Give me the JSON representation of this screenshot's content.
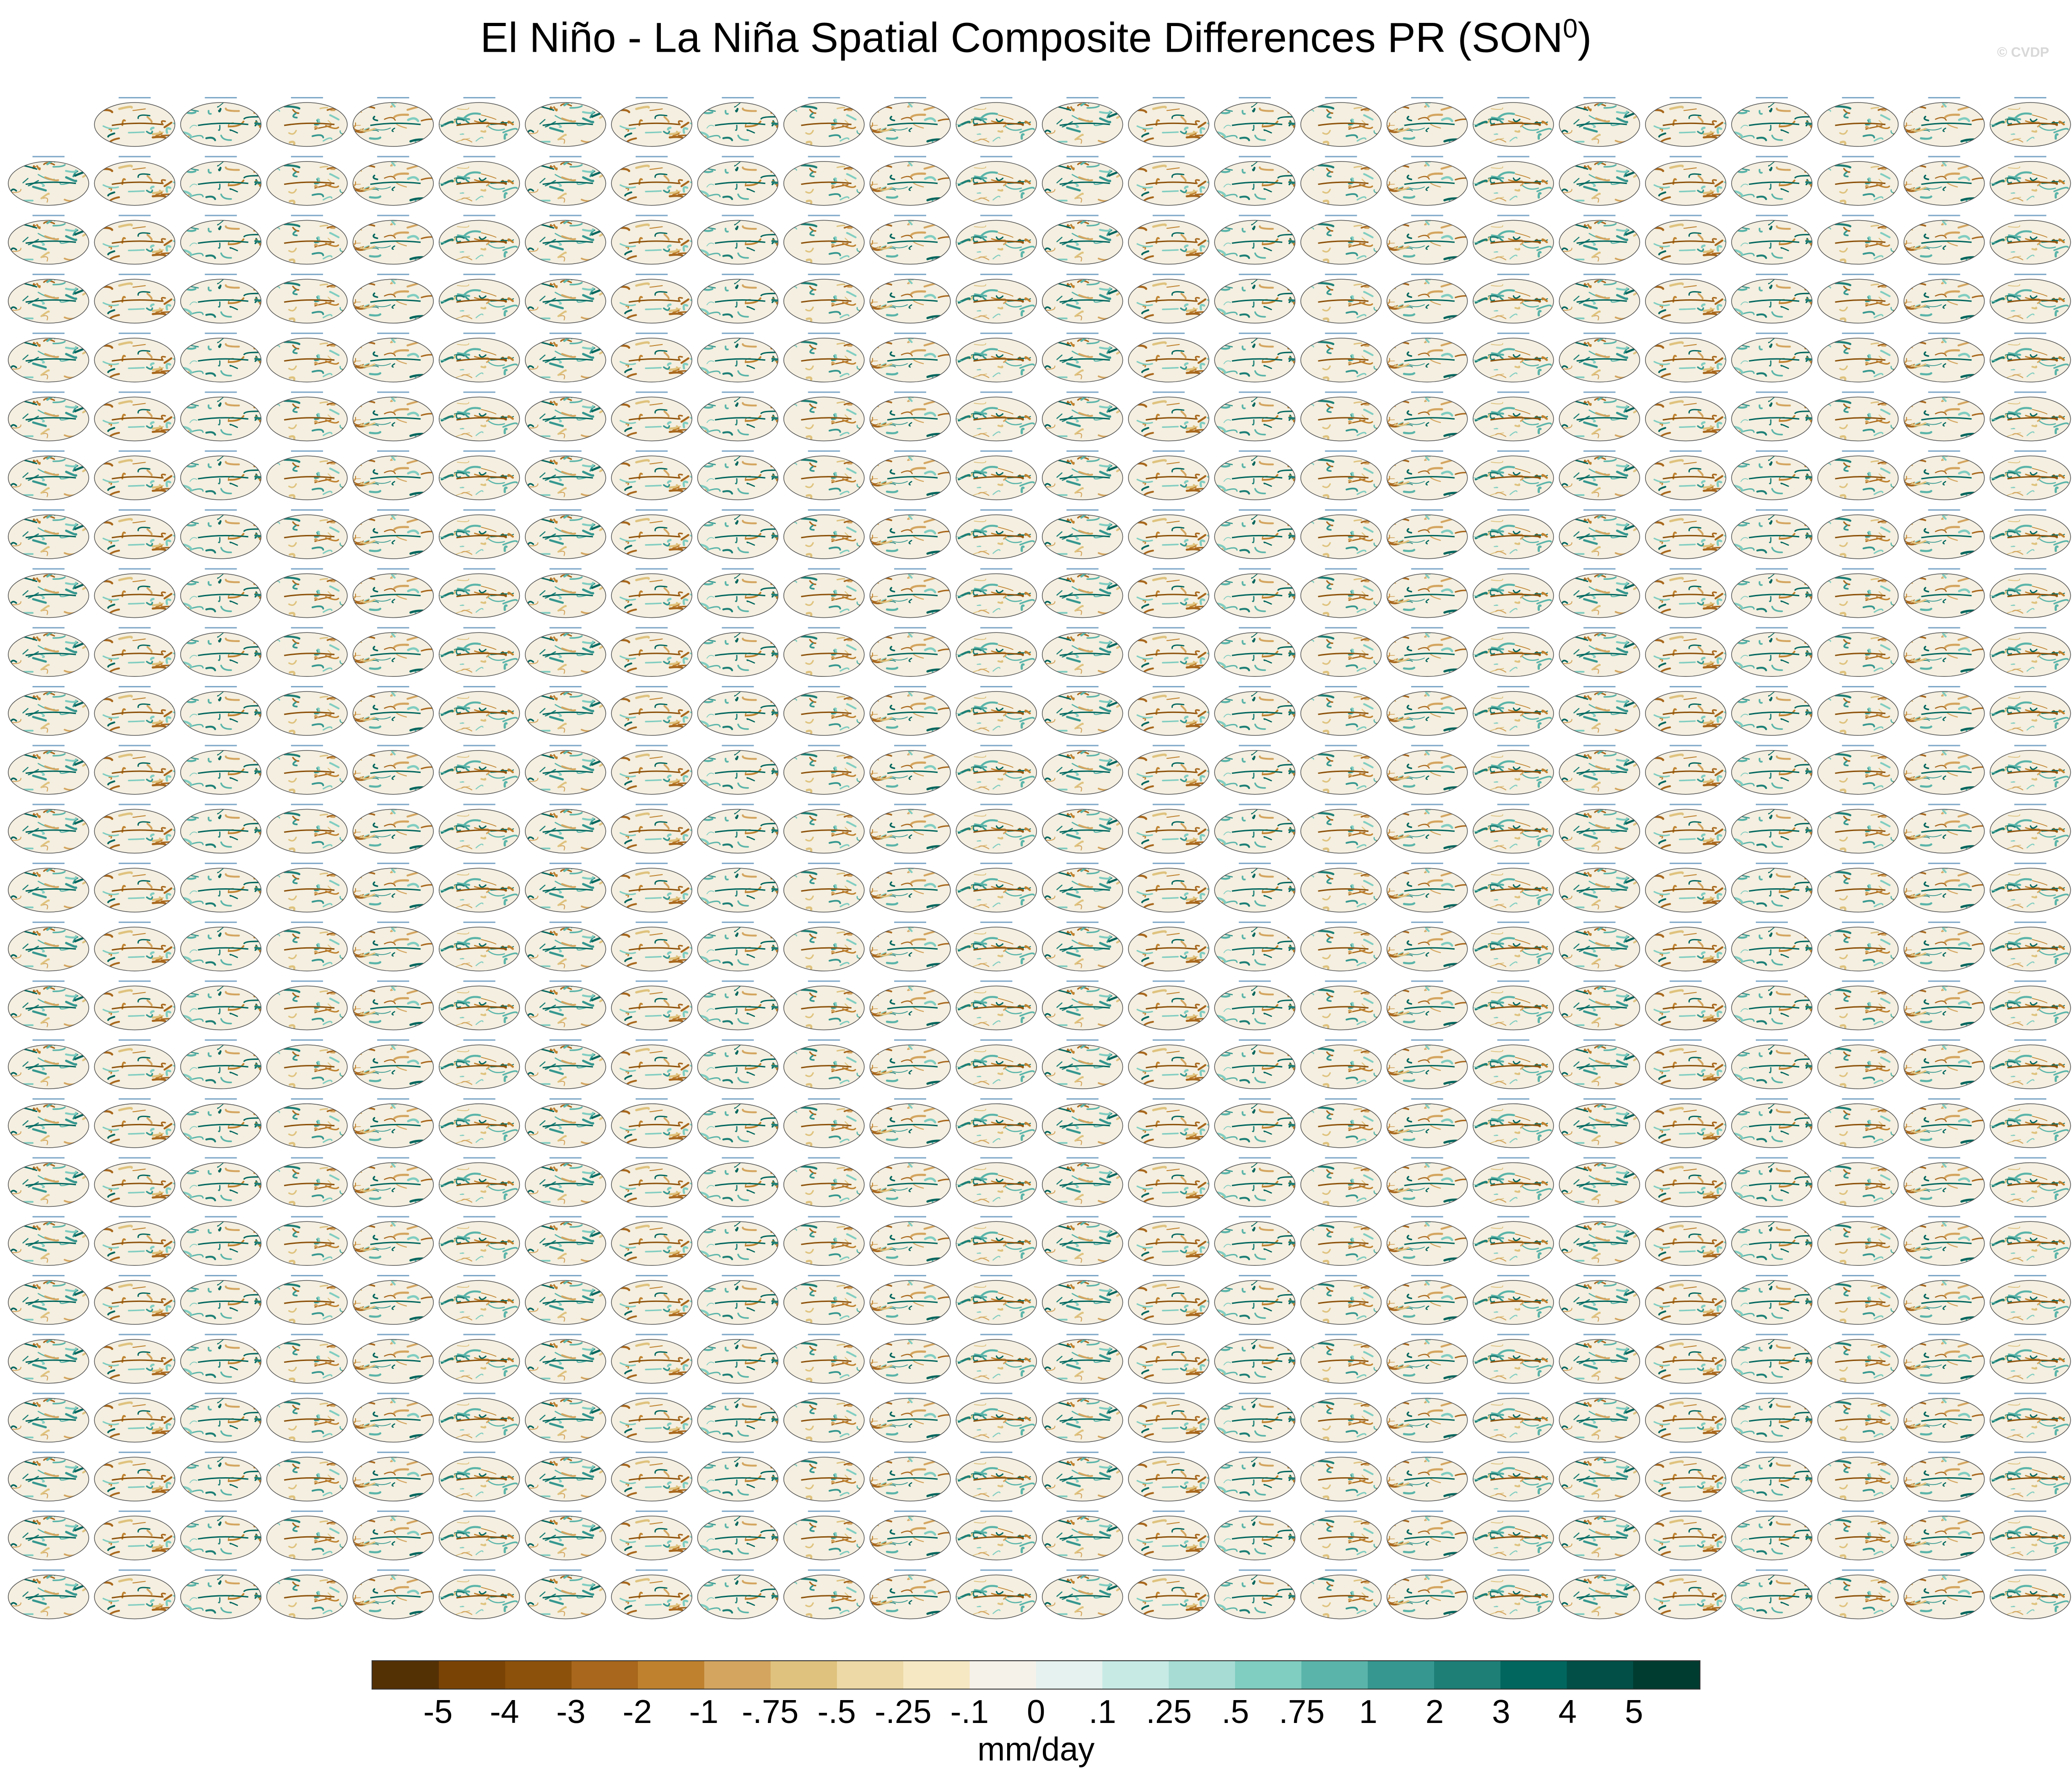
{
  "title": {
    "main": "El Niño - La Niña Spatial Composite Differences PR (SON",
    "superscript": "0",
    "close": ")"
  },
  "credit": "© CVDP",
  "panel_grid": {
    "rows": 26,
    "columns": 24,
    "first_row_columns": 23,
    "trailing_panels": 1,
    "total_panels": 624,
    "projection": "robinson-globe"
  },
  "colorbar": {
    "units": "mm/day",
    "colors": [
      "#543005",
      "#7a4306",
      "#8c510a",
      "#a8671c",
      "#bf812d",
      "#d4a55f",
      "#dfc27d",
      "#ecd9a6",
      "#f6e8c3",
      "#f5f2ea",
      "#e6f2ef",
      "#c7eae5",
      "#a6dcd3",
      "#80cdc1",
      "#5ab4a9",
      "#35978f",
      "#1d7f76",
      "#01665e",
      "#014f47",
      "#003c30"
    ],
    "labels": [
      "-5",
      "-4",
      "-3",
      "-2",
      "-1",
      "-.75",
      "-.5",
      "-.25",
      "-.1",
      "0",
      ".1",
      ".25",
      ".5",
      ".75",
      "1",
      "2",
      "3",
      "4",
      "5"
    ]
  },
  "chart_data": {
    "type": "heatmap",
    "title": "El Niño - La Niña Spatial Composite Differences PR (SON⁰)",
    "panel_count": 624,
    "colorbar_levels": [
      -5,
      -4,
      -3,
      -2,
      -1,
      -0.75,
      -0.5,
      -0.25,
      -0.1,
      0,
      0.1,
      0.25,
      0.5,
      0.75,
      1,
      2,
      3,
      4,
      5
    ],
    "units": "mm/day"
  }
}
